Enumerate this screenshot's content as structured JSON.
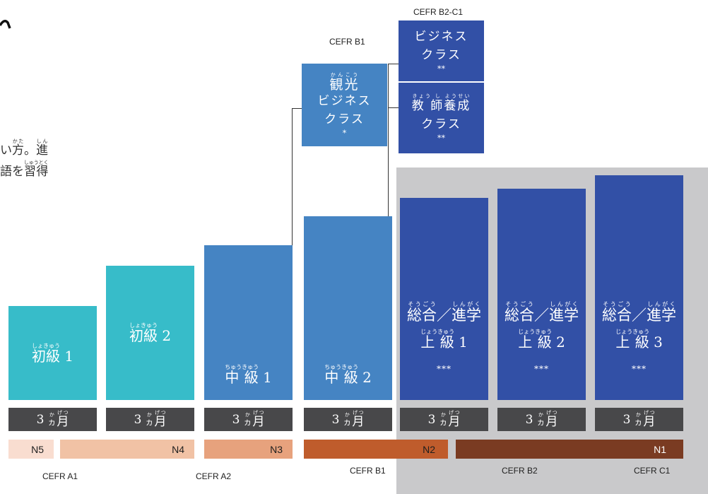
{
  "fragments": {
    "line1": "い方。進",
    "line1_ruby": [
      {
        "base": "方",
        "rt": "かた"
      },
      {
        "base": "進",
        "rt": "しん"
      }
    ],
    "line2": "語を習得",
    "line2_ruby": [
      {
        "base": "習得",
        "rt": "しゅうとく"
      }
    ]
  },
  "levels": [
    {
      "name": "初級1",
      "ruby": "しょきゅう",
      "base": "初級",
      "num": "1",
      "stars": "",
      "duration": "3ヵ月"
    },
    {
      "name": "初級2",
      "ruby": "しょきゅう",
      "base": "初級",
      "num": "2",
      "stars": "",
      "duration": "3ヵ月"
    },
    {
      "name": "中級1",
      "ruby": "ちゅうきゅう",
      "base": "中 級",
      "num": "1",
      "stars": "",
      "duration": "3ヵ月"
    },
    {
      "name": "中級2",
      "ruby": "ちゅうきゅう",
      "base": "中 級",
      "num": "2",
      "stars": "",
      "duration": "3ヵ月"
    },
    {
      "name": "上級1",
      "ruby": "じょうきゅう",
      "base": "上 級",
      "num": "1",
      "stars": "***",
      "duration": "3ヵ月"
    },
    {
      "name": "上級2",
      "ruby": "じょうきゅう",
      "base": "上 級",
      "num": "2",
      "stars": "***",
      "duration": "3ヵ月"
    },
    {
      "name": "上級3",
      "ruby": "じょうきゅう",
      "base": "上 級",
      "num": "3",
      "stars": "***",
      "duration": "3ヵ月"
    }
  ],
  "advanced_header": {
    "text": "総合／進学",
    "ruby_sogo": "そうごう",
    "ruby_shingaku": "しんがく"
  },
  "duration_ruby": {
    "ka": "か",
    "getsu": "げつ"
  },
  "special_courses": {
    "tourism": {
      "cefr": "CEFR B1",
      "ruby": "かんこう",
      "line1": "観光",
      "line2": "ビジネス",
      "line3": "クラス",
      "stars": "*"
    },
    "business": {
      "cefr": "CEFR B2-C1",
      "line1": "ビジネス",
      "line2": "クラス",
      "stars": "**"
    },
    "teacher": {
      "ruby": "きょう し ようせい",
      "line1": "教 師養成",
      "line2": "クラス",
      "stars": "**"
    }
  },
  "jlpt": [
    "N5",
    "N4",
    "N3",
    "N2",
    "N1"
  ],
  "cefr_bottom": [
    "CEFR A1",
    "CEFR A2",
    "CEFR B1",
    "CEFR B2",
    "CEFR C1"
  ],
  "colors": {
    "teal": "#37bcc9",
    "mid_blue": "#4584c3",
    "dark_blue": "#3250a6",
    "gray_band": "#c9c9cb",
    "duration": "#48484a",
    "n5": "#f9ddd0",
    "n4": "#f1c2a5",
    "n3": "#e7a27d",
    "n2": "#bf5c2c",
    "n1": "#7a3b22"
  }
}
